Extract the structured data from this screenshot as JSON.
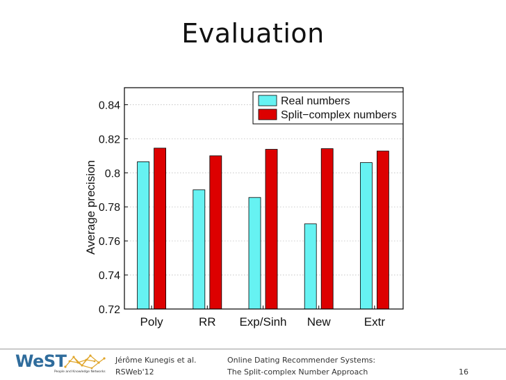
{
  "slide": {
    "title": "Evaluation"
  },
  "footer": {
    "logo_text": "WeST",
    "logo_tagline": "People and Knowledge Networks",
    "author": "Jérôme Kunegis et al.",
    "venue": "RSWeb'12",
    "talk_title_line1": "Online Dating Recommender Systems:",
    "talk_title_line2": "The Split-complex Number Approach",
    "page_number": "16"
  },
  "chart_data": {
    "type": "bar",
    "title": "",
    "xlabel": "",
    "ylabel": "Average precision",
    "categories": [
      "Poly",
      "RR",
      "Exp/Sinh",
      "New",
      "Extr"
    ],
    "series": [
      {
        "name": "Real numbers",
        "color": "#66f2f2",
        "values": [
          0.8065,
          0.79,
          0.7855,
          0.77,
          0.806
        ]
      },
      {
        "name": "Split−complex numbers",
        "color": "#dd0000",
        "values": [
          0.8145,
          0.81,
          0.8138,
          0.8142,
          0.8128
        ]
      }
    ],
    "ylim": [
      0.72,
      0.85
    ],
    "yticks": [
      "0.72",
      "0.74",
      "0.76",
      "0.78",
      "0.8",
      "0.82",
      "0.84"
    ],
    "grid": "horizontal dotted",
    "legend_position": "top-right"
  }
}
